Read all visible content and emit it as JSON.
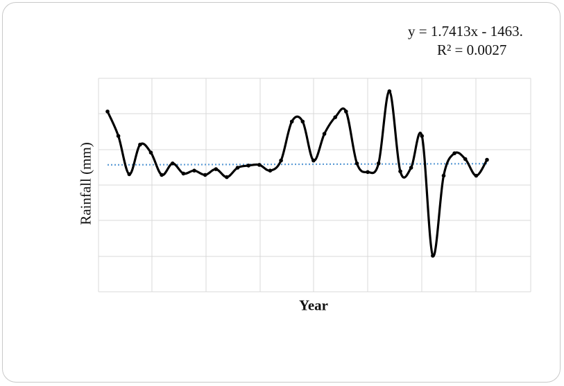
{
  "chart_data": {
    "type": "line",
    "title": "",
    "xlabel": "Year",
    "ylabel": "Rainfall (mm)",
    "grid": true,
    "legend": "none",
    "trendline": {
      "equation": "y = 1.7413x - 1463.",
      "r2": "R² = 0.0027",
      "style": "dotted",
      "color": "#5b9bd5",
      "values": [
        0.0,
        0.08
      ]
    },
    "series": [
      {
        "color": "#000000",
        "values": [
          3.7,
          2.0,
          -0.65,
          1.4,
          0.85,
          -0.7,
          0.1,
          -0.6,
          -0.4,
          -0.7,
          -0.3,
          -0.85,
          -0.2,
          -0.05,
          0.0,
          -0.4,
          0.3,
          3.0,
          3.0,
          0.3,
          2.15,
          3.3,
          3.7,
          0.1,
          -0.5,
          0.1,
          5.1,
          -0.45,
          -0.2,
          2.0,
          -6.3,
          -0.75,
          0.8,
          0.4,
          -0.75,
          0.35
        ]
      }
    ],
    "ylim": [
      -8.8,
      6.0
    ]
  }
}
